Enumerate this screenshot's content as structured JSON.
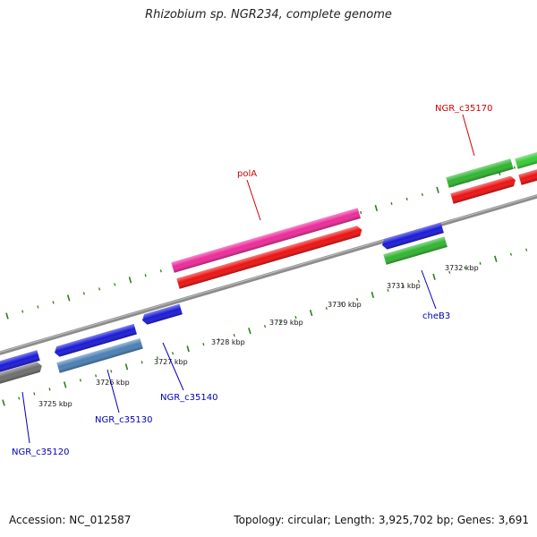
{
  "title": "Rhizobium sp. NGR234, complete genome",
  "footer": {
    "accession": "Accession: NC_012587",
    "summary": "Topology: circular; Length: 3,925,702 bp; Genes: 3,691"
  },
  "colors": {
    "backbone": "#8c8c8c",
    "tick": "#2e7d1f",
    "forward_label": "#cc0000",
    "reverse_label": "#0000bb"
  },
  "ticks": [
    {
      "label": "3725 kbp"
    },
    {
      "label": "3726 kbp"
    },
    {
      "label": "3727 kbp"
    },
    {
      "label": "3728 kbp"
    },
    {
      "label": "3729 kbp"
    },
    {
      "label": "3730 kbp"
    },
    {
      "label": "3731 kbp"
    },
    {
      "label": "3732 kbp"
    }
  ],
  "features": [
    {
      "name": "f-grey",
      "color": "#6e6e6e",
      "strand": "reverse"
    },
    {
      "name": "f-blue-left",
      "color": "#1a1ad9",
      "strand": "reverse"
    },
    {
      "name": "f-blue-c35130",
      "color": "#1a1ad9",
      "strand": "reverse"
    },
    {
      "name": "f-steelblue",
      "color": "#4a7fb5",
      "strand": "reverse"
    },
    {
      "name": "f-blue-c35140",
      "color": "#1a1ad9",
      "strand": "reverse"
    },
    {
      "name": "f-pink-polA",
      "color": "#ee2a9a",
      "strand": "forward"
    },
    {
      "name": "f-red-polA",
      "color": "#ee1111",
      "strand": "forward"
    },
    {
      "name": "f-blue-cheB3",
      "color": "#1a1ad9",
      "strand": "reverse"
    },
    {
      "name": "f-green-cheB3",
      "color": "#2fb52f",
      "strand": "reverse"
    },
    {
      "name": "f-green-c35170",
      "color": "#2fb52f",
      "strand": "forward"
    },
    {
      "name": "f-red-c35170",
      "color": "#ee1111",
      "strand": "forward"
    },
    {
      "name": "f-green-right",
      "color": "#36cc36",
      "strand": "forward"
    },
    {
      "name": "f-red-right",
      "color": "#ee1111",
      "strand": "forward"
    }
  ],
  "gene_labels": [
    {
      "text": "NGR_c35120",
      "strand": "reverse"
    },
    {
      "text": "NGR_c35130",
      "strand": "reverse"
    },
    {
      "text": "NGR_c35140",
      "strand": "reverse"
    },
    {
      "text": "polA",
      "strand": "forward"
    },
    {
      "text": "cheB3",
      "strand": "reverse"
    },
    {
      "text": "NGR_c35170",
      "strand": "forward"
    }
  ]
}
